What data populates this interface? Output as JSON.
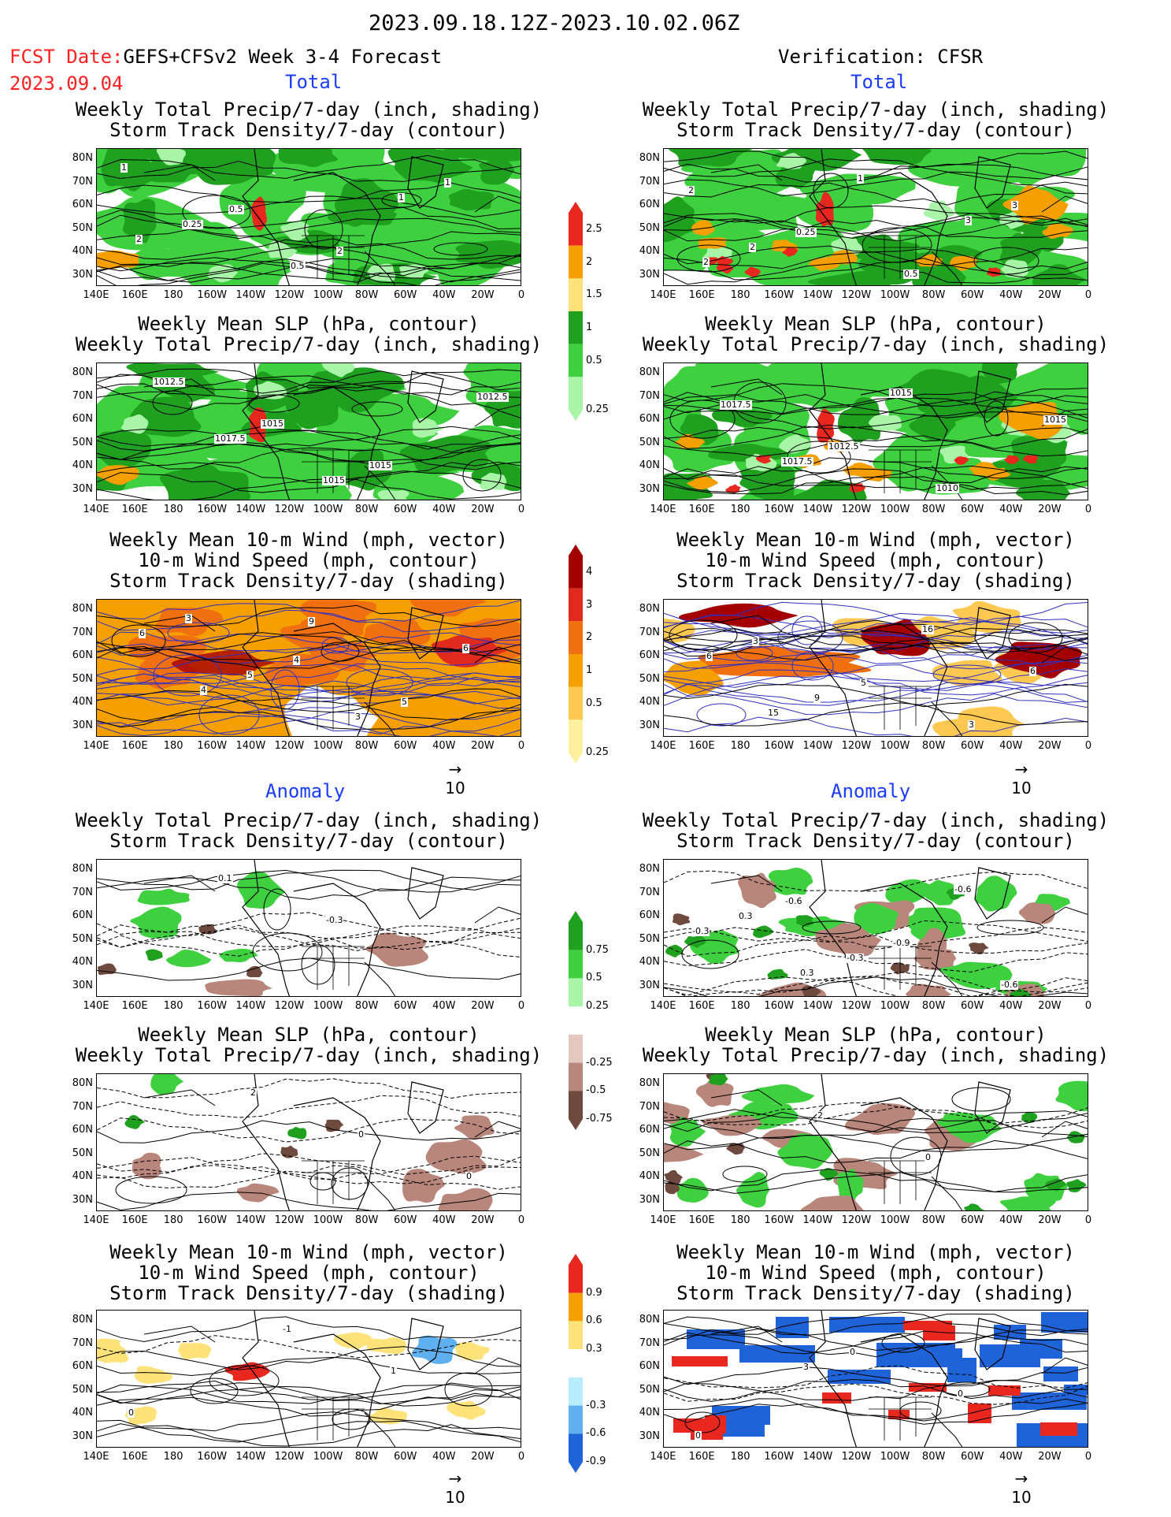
{
  "header": {
    "date_range": "2023.09.18.12Z-2023.10.02.06Z",
    "fcst_label": "FCST Date:",
    "fcst_model": "GEFS+CFSv2 Week 3-4 Forecast",
    "fcst_date": "2023.09.04",
    "verification": "Verification: CFSR"
  },
  "sections": {
    "total": "Total",
    "anomaly": "Anomaly"
  },
  "panel_titles": {
    "precip_storm": [
      "Weekly Total Precip/7-day (inch, shading)",
      "Storm Track Density/7-day (contour)"
    ],
    "slp_precip": [
      "Weekly Mean SLP (hPa, contour)",
      "Weekly Total Precip/7-day (inch, shading)"
    ],
    "wind_storm": [
      "Weekly Mean 10-m Wind (mph, vector)",
      "10-m Wind Speed (mph, contour)",
      "Storm Track Density/7-day (shading)"
    ]
  },
  "axes": {
    "lat_labels": [
      "80N",
      "70N",
      "60N",
      "50N",
      "40N",
      "30N"
    ],
    "lon_labels": [
      "140E",
      "160E",
      "180",
      "160W",
      "140W",
      "120W",
      "100W",
      "80W",
      "60W",
      "40W",
      "20W",
      "0"
    ]
  },
  "vector_ref": "10",
  "colorbars": {
    "precip_total": {
      "labels": [
        "2.5",
        "2",
        "1.5",
        "1",
        "0.5",
        "0.25"
      ],
      "colors": [
        "#e8281e",
        "#f5a000",
        "#ffe37a",
        "#1fa01f",
        "#3fd03f",
        "#a8f5a8"
      ]
    },
    "storm_total": {
      "labels": [
        "4",
        "3",
        "2",
        "1",
        "0.5",
        "0.25"
      ],
      "colors": [
        "#a50000",
        "#e02a1e",
        "#f07010",
        "#f5a000",
        "#ffc850",
        "#fff0a0"
      ]
    },
    "precip_anom": {
      "labels": [
        "0.75",
        "0.5",
        "0.25",
        "-0.25",
        "-0.5",
        "-0.75"
      ],
      "colors": [
        "#1fa01f",
        "#3fd03f",
        "#a8f5a8",
        "#ffffff",
        "#e4c8c0",
        "#b8867a",
        "#6e4a3e"
      ]
    },
    "storm_anom": {
      "labels": [
        "0.9",
        "0.6",
        "0.3",
        "-0.3",
        "-0.6",
        "-0.9"
      ],
      "colors": [
        "#e8281e",
        "#f5a000",
        "#ffe37a",
        "#ffffff",
        "#b8ecff",
        "#5fb0f0",
        "#1e64d8"
      ]
    }
  },
  "contour_labels": {
    "fc_precip_storm": [
      "1",
      "0.5",
      "2",
      "1",
      "0.25",
      "0.5",
      "1",
      "2"
    ],
    "vf_precip_storm": [
      "2",
      "0.25",
      "0.5",
      "3",
      "2",
      "1",
      "3",
      "2"
    ],
    "fc_slp": [
      "1012.5",
      "1015",
      "1015",
      "1012.5",
      "1017.5",
      "1015"
    ],
    "vf_slp": [
      "1017.5",
      "1012.5",
      "1010",
      "1015",
      "1017.5",
      "1015"
    ],
    "fc_wind": [
      "3",
      "4",
      "5",
      "6",
      "5",
      "3",
      "6",
      "4",
      "9"
    ],
    "vf_wind": [
      "3",
      "5",
      "3",
      "6",
      "9",
      "16",
      "6",
      "15"
    ],
    "fc_anom_precip": [
      "0.1",
      "-0.3"
    ],
    "vf_anom_precip": [
      "-0.6",
      "-0.9",
      "-0.6",
      "0.3",
      "-0.3",
      "-0.6",
      "-0.3",
      "0.3"
    ],
    "fc_anom_slp": [
      "2",
      "0",
      "0"
    ],
    "vf_anom_slp": [
      "2",
      "0"
    ],
    "fc_anom_wind": [
      "-1",
      "1",
      "0"
    ],
    "vf_anom_wind": [
      "0",
      "0",
      "0",
      "3"
    ]
  }
}
